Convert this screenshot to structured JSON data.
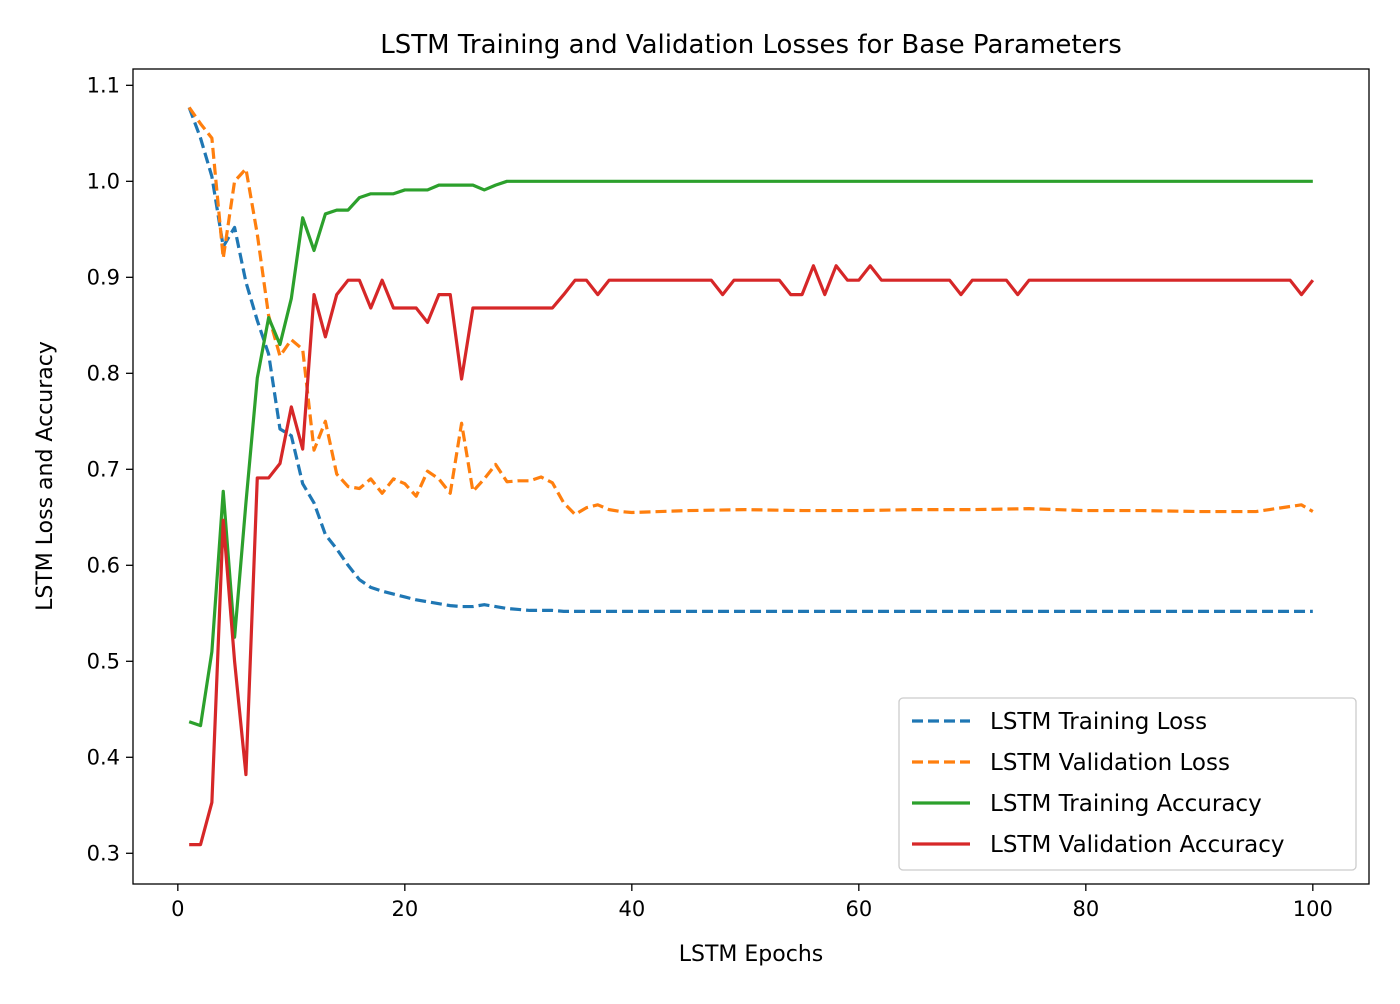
{
  "chart_data": {
    "type": "line",
    "title": "LSTM Training and Validation Losses for Base Parameters",
    "xlabel": "LSTM Epochs",
    "ylabel": "LSTM Loss and Accuracy",
    "xlim": [
      -3.95,
      104.95
    ],
    "ylim": [
      0.268,
      1.117
    ],
    "xticks": [
      0,
      20,
      40,
      60,
      80,
      100
    ],
    "yticks": [
      0.3,
      0.4,
      0.5,
      0.6,
      0.7,
      0.8,
      0.9,
      1.0,
      1.1
    ],
    "xtick_labels": [
      "0",
      "20",
      "40",
      "60",
      "80",
      "100"
    ],
    "ytick_labels": [
      "0.3",
      "0.4",
      "0.5",
      "0.6",
      "0.7",
      "0.8",
      "0.9",
      "1.0",
      "1.1"
    ],
    "grid": false,
    "legend_position": "lower-right",
    "series": [
      {
        "name": "LSTM Training Loss",
        "color": "#1f77b4",
        "style": "dashed",
        "x": [
          1,
          2,
          3,
          4,
          5,
          6,
          7,
          8,
          9,
          10,
          11,
          12,
          13,
          14,
          15,
          16,
          17,
          18,
          19,
          20,
          21,
          22,
          23,
          24,
          25,
          26,
          27,
          28,
          29,
          30,
          31,
          32,
          33,
          34,
          35,
          36,
          37,
          38,
          39,
          40,
          45,
          50,
          55,
          60,
          65,
          70,
          75,
          80,
          85,
          90,
          95,
          100
        ],
        "values": [
          1.077,
          1.045,
          1.005,
          0.932,
          0.952,
          0.895,
          0.855,
          0.82,
          0.742,
          0.735,
          0.685,
          0.665,
          0.632,
          0.617,
          0.6,
          0.585,
          0.577,
          0.573,
          0.57,
          0.567,
          0.564,
          0.562,
          0.56,
          0.558,
          0.557,
          0.557,
          0.559,
          0.557,
          0.555,
          0.554,
          0.553,
          0.553,
          0.553,
          0.552,
          0.552,
          0.552,
          0.552,
          0.552,
          0.552,
          0.552,
          0.552,
          0.552,
          0.552,
          0.552,
          0.552,
          0.552,
          0.552,
          0.552,
          0.552,
          0.552,
          0.552,
          0.552
        ]
      },
      {
        "name": "LSTM Validation Loss",
        "color": "#ff7f0e",
        "style": "dashed",
        "x": [
          1,
          2,
          3,
          4,
          5,
          6,
          7,
          8,
          9,
          10,
          11,
          12,
          13,
          14,
          15,
          16,
          17,
          18,
          19,
          20,
          21,
          22,
          23,
          24,
          25,
          26,
          27,
          28,
          29,
          30,
          31,
          32,
          33,
          34,
          35,
          36,
          37,
          38,
          39,
          40,
          45,
          50,
          55,
          60,
          65,
          70,
          75,
          80,
          85,
          90,
          95,
          99,
          100
        ],
        "values": [
          1.077,
          1.06,
          1.045,
          0.92,
          1.0,
          1.013,
          0.945,
          0.86,
          0.818,
          0.835,
          0.825,
          0.72,
          0.75,
          0.695,
          0.682,
          0.68,
          0.69,
          0.675,
          0.69,
          0.685,
          0.672,
          0.698,
          0.69,
          0.675,
          0.748,
          0.677,
          0.69,
          0.705,
          0.687,
          0.688,
          0.688,
          0.692,
          0.686,
          0.665,
          0.653,
          0.66,
          0.663,
          0.658,
          0.656,
          0.655,
          0.657,
          0.658,
          0.657,
          0.657,
          0.658,
          0.658,
          0.659,
          0.657,
          0.657,
          0.656,
          0.656,
          0.663,
          0.656
        ]
      },
      {
        "name": "LSTM Training Accuracy",
        "color": "#2ca02c",
        "style": "solid",
        "x": [
          1,
          2,
          3,
          4,
          5,
          6,
          7,
          8,
          9,
          10,
          11,
          12,
          13,
          14,
          15,
          16,
          17,
          18,
          19,
          20,
          21,
          22,
          23,
          24,
          25,
          26,
          27,
          28,
          29,
          30,
          40,
          50,
          60,
          70,
          80,
          90,
          100
        ],
        "values": [
          0.437,
          0.433,
          0.51,
          0.677,
          0.525,
          0.665,
          0.795,
          0.858,
          0.83,
          0.878,
          0.962,
          0.928,
          0.966,
          0.97,
          0.97,
          0.983,
          0.987,
          0.987,
          0.987,
          0.991,
          0.991,
          0.991,
          0.996,
          0.996,
          0.996,
          0.996,
          0.991,
          0.996,
          1.0,
          1.0,
          1.0,
          1.0,
          1.0,
          1.0,
          1.0,
          1.0,
          1.0
        ]
      },
      {
        "name": "LSTM Validation Accuracy",
        "color": "#d62728",
        "style": "solid",
        "x": [
          1,
          2,
          3,
          4,
          5,
          6,
          7,
          8,
          9,
          10,
          11,
          12,
          13,
          14,
          15,
          16,
          17,
          18,
          19,
          20,
          21,
          22,
          23,
          24,
          25,
          26,
          27,
          28,
          29,
          30,
          31,
          32,
          33,
          34,
          35,
          36,
          37,
          38,
          39,
          40,
          41,
          42,
          43,
          44,
          45,
          46,
          47,
          48,
          49,
          50,
          51,
          52,
          53,
          54,
          55,
          56,
          57,
          58,
          59,
          60,
          61,
          62,
          63,
          64,
          65,
          66,
          67,
          68,
          69,
          70,
          71,
          72,
          73,
          74,
          75,
          76,
          77,
          78,
          79,
          80,
          85,
          90,
          95,
          98,
          99,
          100
        ],
        "values": [
          0.309,
          0.309,
          0.353,
          0.647,
          0.5,
          0.382,
          0.691,
          0.691,
          0.706,
          0.765,
          0.721,
          0.882,
          0.838,
          0.882,
          0.897,
          0.897,
          0.868,
          0.897,
          0.868,
          0.868,
          0.868,
          0.853,
          0.882,
          0.882,
          0.794,
          0.868,
          0.868,
          0.868,
          0.868,
          0.868,
          0.868,
          0.868,
          0.868,
          0.882,
          0.897,
          0.897,
          0.882,
          0.897,
          0.897,
          0.897,
          0.897,
          0.897,
          0.897,
          0.897,
          0.897,
          0.897,
          0.897,
          0.882,
          0.897,
          0.897,
          0.897,
          0.897,
          0.897,
          0.882,
          0.882,
          0.912,
          0.882,
          0.912,
          0.897,
          0.897,
          0.912,
          0.897,
          0.897,
          0.897,
          0.897,
          0.897,
          0.897,
          0.897,
          0.882,
          0.897,
          0.897,
          0.897,
          0.897,
          0.882,
          0.897,
          0.897,
          0.897,
          0.897,
          0.897,
          0.897,
          0.897,
          0.897,
          0.897,
          0.897,
          0.882,
          0.897
        ]
      }
    ]
  }
}
